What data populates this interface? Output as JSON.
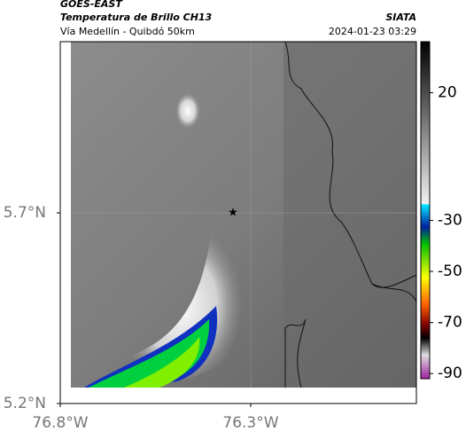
{
  "header": {
    "source": "GOES-EAST",
    "title": "Temperatura de Brillo CH13",
    "org": "SIATA",
    "route": "Vía Medellín - Quibdó 50km",
    "timestamp": "2024-01-23 03:29"
  },
  "map": {
    "xlim": [
      -76.8,
      -75.865
    ],
    "ylim": [
      5.2,
      6.149
    ],
    "xticks": [
      {
        "value": -76.8,
        "label": "76.8°W"
      },
      {
        "value": -76.3,
        "label": "76.3°W"
      }
    ],
    "yticks": [
      {
        "value": 5.7,
        "label": "5.7°N"
      },
      {
        "value": 5.2,
        "label": "5.2°N"
      }
    ]
  },
  "colorbar": {
    "lim": [
      40,
      -92
    ],
    "ticks": [
      20,
      -30,
      -50,
      -70,
      -90
    ]
  }
}
